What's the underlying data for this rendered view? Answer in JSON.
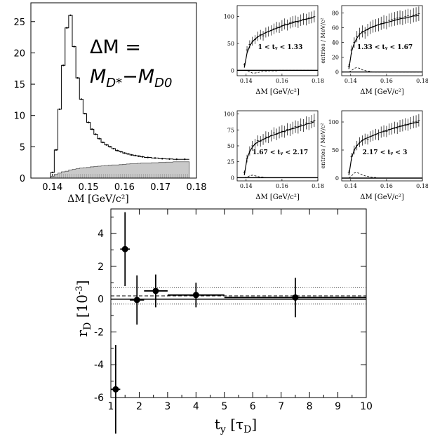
{
  "chart_data": [
    {
      "id": "main",
      "type": "bar",
      "title": "",
      "xlabel": "ΔM [GeV/c²]",
      "ylabel": "",
      "xlim": [
        0.134,
        0.18
      ],
      "ylim": [
        0,
        28
      ],
      "xticks": [
        "0.14",
        "0.15",
        "0.16",
        "0.17",
        "0.18"
      ],
      "yticks": [
        "0",
        "5",
        "10",
        "15",
        "20",
        "25"
      ],
      "annotation": {
        "line1": "ΔM =",
        "line2_a": "M",
        "line2_sub_a": "D*",
        "line2_dash": "−M",
        "line2_sub_b": "D0"
      },
      "bin_edges": [
        0.1395,
        0.1405,
        0.1415,
        0.1425,
        0.1435,
        0.1445,
        0.1455,
        0.1465,
        0.1475,
        0.1485,
        0.1495,
        0.1505,
        0.1515,
        0.1525,
        0.1535,
        0.1545,
        0.1555,
        0.1565,
        0.1575,
        0.1585,
        0.1595,
        0.1605,
        0.1615,
        0.1625,
        0.1635,
        0.1645,
        0.1655,
        0.1675,
        0.1695,
        0.1715,
        0.1735,
        0.1755,
        0.178
      ],
      "series": [
        {
          "name": "",
          "values": [
            0.9,
            4.5,
            11,
            18,
            24,
            26,
            21,
            16,
            12.6,
            10.3,
            8.9,
            7.8,
            7.0,
            6.3,
            5.7,
            5.3,
            5.0,
            4.7,
            4.4,
            4.2,
            4.0,
            3.85,
            3.7,
            3.6,
            3.5,
            3.4,
            3.3,
            3.2,
            3.1,
            3.05,
            3.0,
            3.0
          ]
        },
        {
          "name": "",
          "values": [
            0.3,
            0.6,
            0.8,
            1.0,
            1.1,
            1.3,
            1.4,
            1.5,
            1.6,
            1.65,
            1.7,
            1.8,
            1.85,
            1.9,
            1.95,
            2.0,
            2.05,
            2.1,
            2.1,
            2.15,
            2.2,
            2.25,
            2.3,
            2.3,
            2.35,
            2.4,
            2.4,
            2.45,
            2.5,
            2.55,
            2.6,
            2.6
          ]
        }
      ]
    },
    {
      "id": "bin1",
      "type": "scatter",
      "xlabel": "ΔM [GeV/c²]",
      "ylabel": "",
      "label": "1 < t_y < 1.33",
      "xlim": [
        0.135,
        0.18
      ],
      "ylim": [
        -10,
        120
      ],
      "xticks": [
        "0.14",
        "0.16",
        "0.18"
      ],
      "yticks": [
        "0",
        "50",
        "100"
      ],
      "x": [
        0.139,
        0.1405,
        0.142,
        0.1435,
        0.145,
        0.1465,
        0.148,
        0.1495,
        0.151,
        0.1525,
        0.154,
        0.1555,
        0.157,
        0.1585,
        0.16,
        0.1615,
        0.163,
        0.1645,
        0.166,
        0.1675,
        0.169,
        0.1705,
        0.172,
        0.1735,
        0.175,
        0.1765,
        0.178
      ],
      "y": [
        10,
        38,
        48,
        54,
        57,
        63,
        66,
        64,
        70,
        72,
        74,
        77,
        80,
        79,
        83,
        86,
        84,
        88,
        90,
        91,
        89,
        93,
        95,
        94,
        97,
        98,
        100
      ],
      "fit": [
        5,
        32,
        45,
        53,
        58,
        62,
        65,
        67,
        70,
        72,
        74,
        76,
        78,
        80,
        82,
        84,
        85,
        87,
        88,
        90,
        91,
        92,
        94,
        95,
        96,
        97,
        98
      ],
      "signal": [
        0,
        -1,
        -3,
        -5,
        -5,
        -4,
        -3,
        -2,
        -2,
        -1,
        -1,
        -1,
        -1,
        0,
        0,
        0,
        0,
        0,
        0,
        0,
        0,
        0,
        0,
        0,
        0,
        0,
        0
      ]
    },
    {
      "id": "bin2",
      "type": "scatter",
      "xlabel": "ΔM [GeV/c²]",
      "ylabel": "entries / MeV/c²",
      "label": "1.33 < t_y < 1.67",
      "xlim": [
        0.135,
        0.18
      ],
      "ylim": [
        -5,
        90
      ],
      "xticks": [
        "0.14",
        "0.16",
        "0.18"
      ],
      "yticks": [
        "0",
        "20",
        "40",
        "60",
        "80"
      ],
      "x": [
        0.139,
        0.1405,
        0.142,
        0.1435,
        0.145,
        0.1465,
        0.148,
        0.1495,
        0.151,
        0.1525,
        0.154,
        0.1555,
        0.157,
        0.1585,
        0.16,
        0.1615,
        0.163,
        0.1645,
        0.166,
        0.1675,
        0.169,
        0.1705,
        0.172,
        0.1735,
        0.175,
        0.1765,
        0.178
      ],
      "y": [
        8,
        30,
        40,
        48,
        52,
        55,
        53,
        57,
        60,
        62,
        63,
        64,
        66,
        68,
        67,
        70,
        71,
        72,
        73,
        74,
        73,
        75,
        76,
        75,
        77,
        78,
        79
      ],
      "fit": [
        4,
        28,
        39,
        46,
        51,
        54,
        56,
        58,
        60,
        61,
        63,
        64,
        65,
        66,
        67,
        68,
        69,
        70,
        71,
        72,
        73,
        73,
        74,
        75,
        76,
        76,
        77
      ],
      "signal": [
        0,
        2,
        5,
        6,
        5,
        3,
        2,
        1,
        1,
        0,
        0,
        0,
        0,
        0,
        0,
        0,
        0,
        0,
        0,
        0,
        0,
        0,
        0,
        0,
        0,
        0,
        0
      ]
    },
    {
      "id": "bin3",
      "type": "scatter",
      "xlabel": "ΔM [GeV/c²]",
      "ylabel": "",
      "label": "1.67 < t_y < 2.17",
      "xlim": [
        0.135,
        0.18
      ],
      "ylim": [
        -5,
        105
      ],
      "xticks": [
        "0.14",
        "0.16",
        "0.18"
      ],
      "yticks": [
        "0",
        "25",
        "50",
        "75",
        "100"
      ],
      "x": [
        0.139,
        0.1405,
        0.142,
        0.1435,
        0.145,
        0.1465,
        0.148,
        0.1495,
        0.151,
        0.1525,
        0.154,
        0.1555,
        0.157,
        0.1585,
        0.16,
        0.1615,
        0.163,
        0.1645,
        0.166,
        0.1675,
        0.169,
        0.1705,
        0.172,
        0.1735,
        0.175,
        0.1765,
        0.178
      ],
      "y": [
        8,
        30,
        42,
        50,
        53,
        58,
        57,
        60,
        64,
        63,
        66,
        70,
        68,
        71,
        73,
        72,
        76,
        75,
        78,
        80,
        79,
        83,
        82,
        86,
        85,
        88,
        90
      ],
      "fit": [
        4,
        30,
        41,
        48,
        53,
        56,
        58,
        60,
        62,
        64,
        66,
        67,
        69,
        70,
        72,
        73,
        74,
        76,
        77,
        78,
        80,
        81,
        82,
        84,
        85,
        86,
        88
      ],
      "signal": [
        0,
        1,
        3,
        4,
        3,
        2,
        1,
        1,
        0,
        0,
        0,
        0,
        0,
        0,
        0,
        0,
        0,
        0,
        0,
        0,
        0,
        0,
        0,
        0,
        0,
        0,
        0
      ]
    },
    {
      "id": "bin4",
      "type": "scatter",
      "xlabel": "ΔM [GeV/c²]",
      "ylabel": "entries / MeV/c²",
      "label": "2.17 < t_y < 3",
      "xlim": [
        0.135,
        0.18
      ],
      "ylim": [
        -5,
        120
      ],
      "xticks": [
        "0.14",
        "0.16",
        "0.18"
      ],
      "yticks": [
        "0",
        "50",
        "100"
      ],
      "x": [
        0.139,
        0.1405,
        0.142,
        0.1435,
        0.145,
        0.1465,
        0.148,
        0.1495,
        0.151,
        0.1525,
        0.154,
        0.1555,
        0.157,
        0.1585,
        0.16,
        0.1615,
        0.163,
        0.1645,
        0.166,
        0.1675,
        0.169,
        0.1705,
        0.172,
        0.1735,
        0.175,
        0.1765,
        0.178
      ],
      "y": [
        10,
        38,
        50,
        58,
        64,
        67,
        70,
        69,
        74,
        76,
        78,
        77,
        82,
        84,
        83,
        87,
        88,
        90,
        89,
        93,
        94,
        96,
        95,
        98,
        100,
        101,
        103
      ],
      "fit": [
        5,
        36,
        50,
        58,
        63,
        67,
        70,
        72,
        74,
        76,
        78,
        80,
        82,
        83,
        85,
        86,
        88,
        89,
        91,
        92,
        93,
        94,
        96,
        97,
        98,
        99,
        100
      ],
      "signal": [
        0,
        4,
        9,
        10,
        8,
        6,
        4,
        3,
        2,
        1,
        1,
        0,
        0,
        0,
        0,
        0,
        0,
        0,
        0,
        0,
        0,
        0,
        0,
        0,
        0,
        0,
        0
      ]
    },
    {
      "id": "rd",
      "type": "scatter",
      "title": "",
      "xlabel": "t_y [τ_D]",
      "ylabel": "r_D [10⁻³]",
      "xlim": [
        1,
        10
      ],
      "ylim": [
        -6,
        5.5
      ],
      "xticks": [
        "1",
        "2",
        "3",
        "4",
        "5",
        "6",
        "7",
        "8",
        "9",
        "10"
      ],
      "yticks": [
        "-6",
        "-4",
        "-2",
        "0",
        "2",
        "4"
      ],
      "points": [
        {
          "x": 1.17,
          "xlo": 1.0,
          "xhi": 1.33,
          "y": -5.5,
          "err": 2.7
        },
        {
          "x": 1.5,
          "xlo": 1.33,
          "xhi": 1.67,
          "y": 3.05,
          "err": 2.25
        },
        {
          "x": 1.92,
          "xlo": 1.67,
          "xhi": 2.17,
          "y": -0.05,
          "err": 1.5
        },
        {
          "x": 2.58,
          "xlo": 2.17,
          "xhi": 3.0,
          "y": 0.5,
          "err": 1.0
        },
        {
          "x": 4.0,
          "xlo": 3.0,
          "xhi": 5.0,
          "y": 0.25,
          "err": 0.75
        },
        {
          "x": 7.5,
          "xlo": 5.0,
          "xhi": 10.0,
          "y": 0.1,
          "err": 1.2
        }
      ],
      "average": 0.2,
      "band": [
        -0.3,
        0.7
      ],
      "zero_line": 0
    }
  ]
}
